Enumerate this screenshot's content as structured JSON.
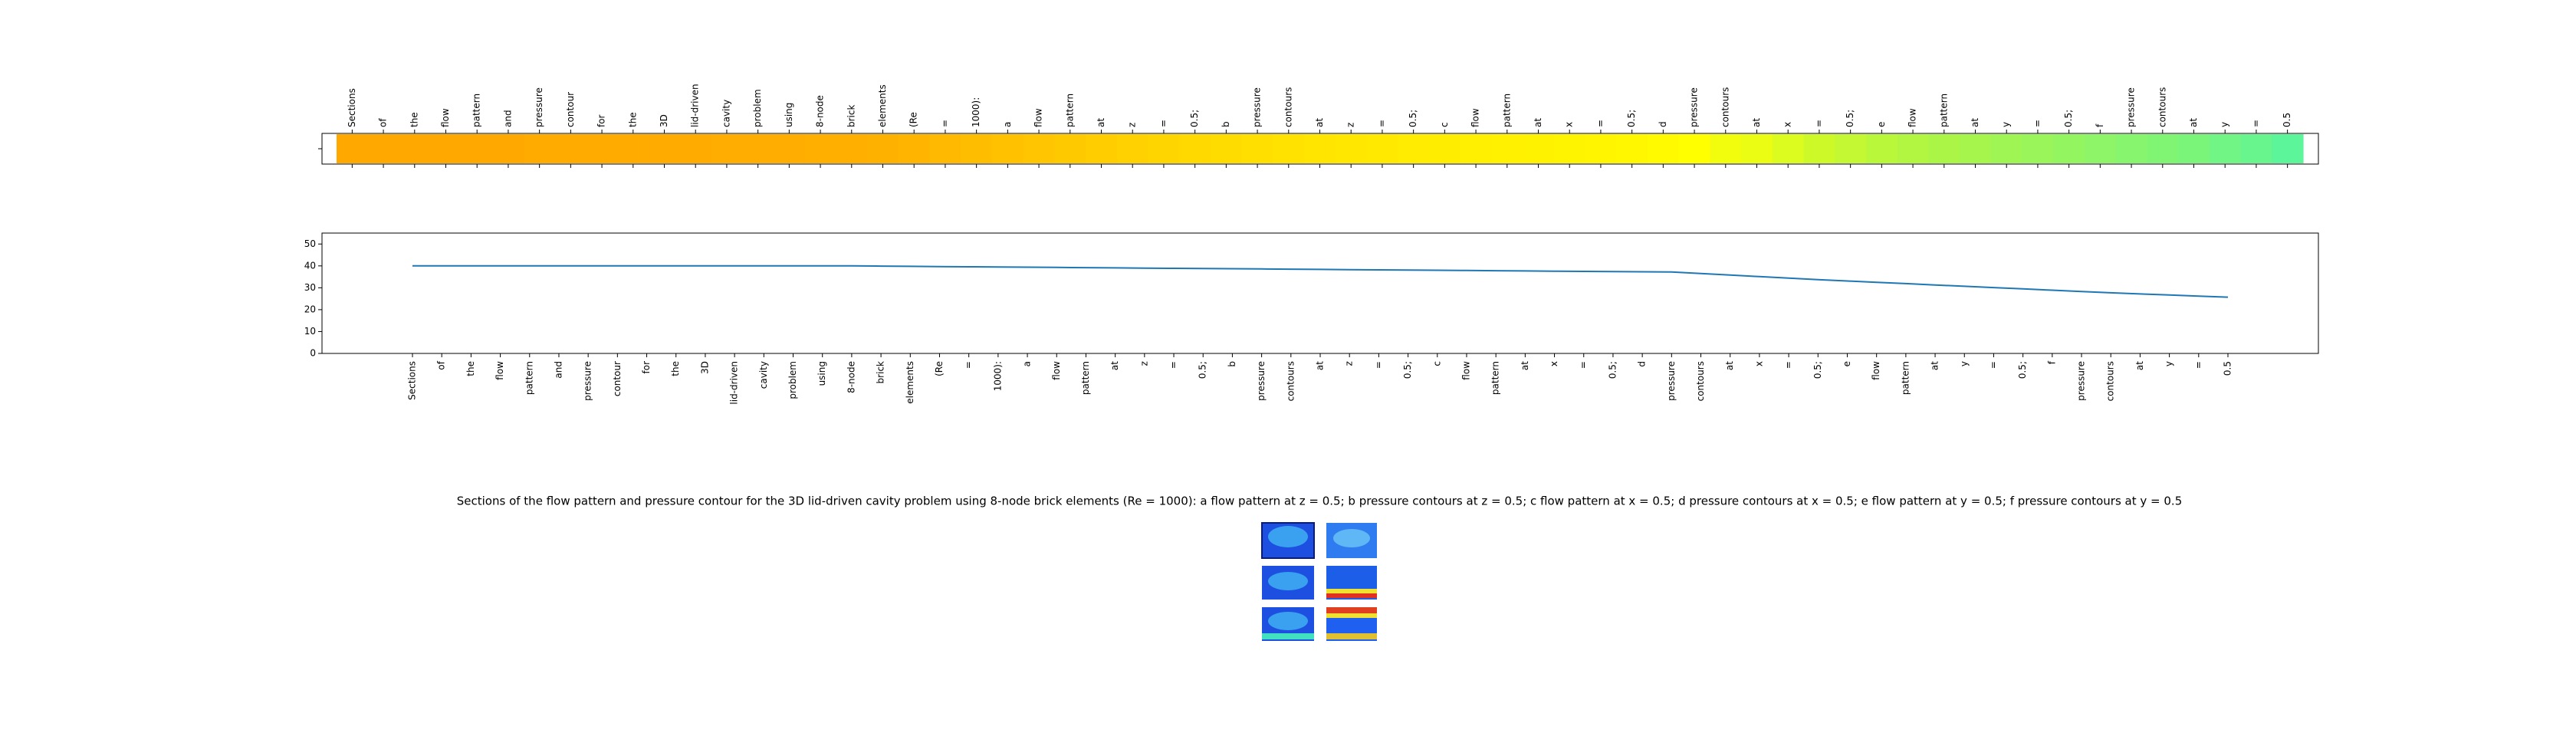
{
  "chart_data": [
    {
      "type": "heatmap",
      "categories": [
        "Sections",
        "of",
        "the",
        "flow",
        "pattern",
        "and",
        "pressure",
        "contour",
        "for",
        "the",
        "3D",
        "lid-driven",
        "cavity",
        "problem",
        "using",
        "8-node",
        "brick",
        "elements",
        "(Re",
        "=",
        "1000):",
        "a",
        "flow",
        "pattern",
        "at",
        "z",
        "=",
        "0.5;",
        "b",
        "pressure",
        "contours",
        "at",
        "z",
        "=",
        "0.5;",
        "c",
        "flow",
        "pattern",
        "at",
        "x",
        "=",
        "0.5;",
        "d",
        "pressure",
        "contours",
        "at",
        "x",
        "=",
        "0.5;",
        "e",
        "flow",
        "pattern",
        "at",
        "y",
        "=",
        "0.5;",
        "f",
        "pressure",
        "contours",
        "at",
        "y",
        "=",
        "0.5"
      ],
      "values": [
        0.02,
        0.02,
        0.02,
        0.02,
        0.02,
        0.02,
        0.03,
        0.03,
        0.03,
        0.03,
        0.03,
        0.03,
        0.04,
        0.04,
        0.04,
        0.05,
        0.05,
        0.06,
        0.08,
        0.1,
        0.12,
        0.14,
        0.16,
        0.18,
        0.2,
        0.22,
        0.24,
        0.26,
        0.28,
        0.3,
        0.32,
        0.34,
        0.35,
        0.36,
        0.38,
        0.39,
        0.4,
        0.41,
        0.42,
        0.43,
        0.44,
        0.45,
        0.47,
        0.5,
        0.54,
        0.56,
        0.6,
        0.64,
        0.67,
        0.7,
        0.72,
        0.74,
        0.76,
        0.78,
        0.8,
        0.82,
        0.84,
        0.86,
        0.88,
        0.9,
        0.93,
        0.96,
        1.0
      ],
      "clim": [
        0,
        1
      ],
      "colorscale": [
        "#ffa500",
        "#ffd700",
        "#ffff00",
        "#a8f54a",
        "#5cf59a"
      ]
    },
    {
      "type": "line",
      "categories": [
        "Sections",
        "of",
        "the",
        "flow",
        "pattern",
        "and",
        "pressure",
        "contour",
        "for",
        "the",
        "3D",
        "lid-driven",
        "cavity",
        "problem",
        "using",
        "8-node",
        "brick",
        "elements",
        "(Re",
        "=",
        "1000):",
        "a",
        "flow",
        "pattern",
        "at",
        "z",
        "=",
        "0.5;",
        "b",
        "pressure",
        "contours",
        "at",
        "z",
        "=",
        "0.5;",
        "c",
        "flow",
        "pattern",
        "at",
        "x",
        "=",
        "0.5;",
        "d",
        "pressure",
        "contours",
        "at",
        "x",
        "=",
        "0.5;",
        "e",
        "flow",
        "pattern",
        "at",
        "y",
        "=",
        "0.5;",
        "f",
        "pressure",
        "contours",
        "at",
        "y",
        "=",
        "0.5"
      ],
      "values": [
        40,
        40,
        40,
        40,
        40,
        40,
        40,
        40,
        40,
        40,
        40,
        40,
        40,
        40,
        40,
        40,
        39.9,
        39.8,
        39.7,
        39.6,
        39.5,
        39.4,
        39.3,
        39.2,
        39.1,
        39,
        38.9,
        38.8,
        38.7,
        38.6,
        38.5,
        38.4,
        38.3,
        38.2,
        38.1,
        38,
        37.9,
        37.8,
        37.7,
        37.6,
        37.5,
        37.4,
        37.3,
        37.2,
        36.5,
        35.8,
        35.1,
        34.4,
        33.7,
        33.1,
        32.5,
        31.9,
        31.3,
        30.7,
        30.1,
        29.5,
        28.9,
        28.3,
        27.7,
        27.2,
        26.7,
        26.2,
        25.7
      ],
      "color": "#1f77b4",
      "ylim": [
        0,
        55
      ],
      "yticks": [
        0,
        10,
        20,
        30,
        40,
        50
      ]
    }
  ],
  "caption": "Sections of the flow pattern and pressure contour for the 3D lid-driven cavity problem using 8-node brick elements (Re = 1000): a flow pattern at z = 0.5; b pressure contours at z = 0.5; c flow pattern at x = 0.5; d pressure contours at x = 0.5; e flow pattern at y = 0.5; f pressure contours at y = 0.5"
}
